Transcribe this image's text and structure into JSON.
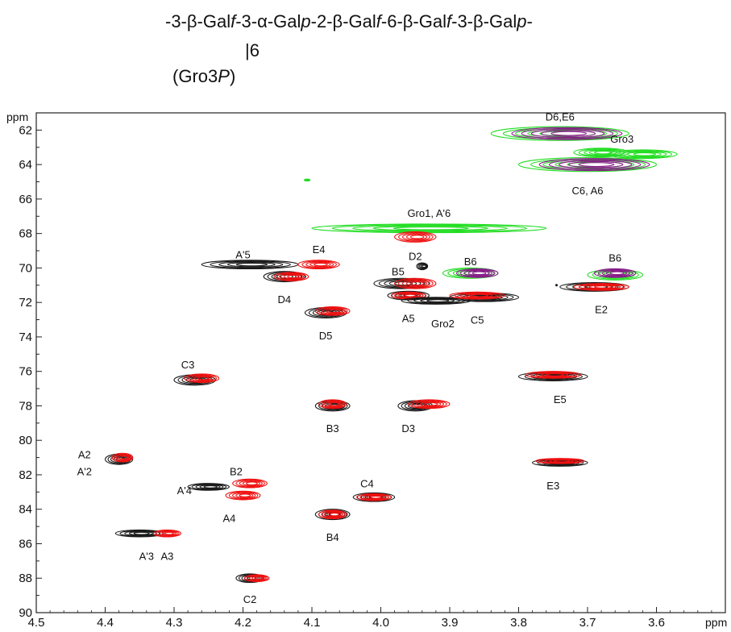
{
  "chart_data": {
    "type": "scatter",
    "title": "-3-β-Galf-3-α-Galp-2-β-Galf-6-β-Galf-3-β-Galp-",
    "title_line2": "|6",
    "title_line3": "(Gro3P)",
    "xlabel": "ppm",
    "ylabel": "ppm",
    "xlim": [
      4.5,
      3.5
    ],
    "ylim": [
      61,
      90
    ],
    "x_reversed": true,
    "y_reversed": true,
    "x_ticks": [
      4.5,
      4.4,
      4.3,
      4.2,
      4.1,
      4.0,
      3.9,
      3.8,
      3.7,
      3.6
    ],
    "y_ticks": [
      62,
      64,
      66,
      68,
      70,
      72,
      74,
      76,
      78,
      80,
      82,
      84,
      86,
      88,
      90
    ],
    "colors": {
      "black": "#1a1a1a",
      "red": "#ee1111",
      "green": "#22dd22",
      "purple": "#8a1a8a"
    },
    "peaks": [
      {
        "x": 3.74,
        "y": 62.2,
        "w": 0.1,
        "h": 0.8,
        "color": "green"
      },
      {
        "x": 3.73,
        "y": 62.2,
        "w": 0.08,
        "h": 0.7,
        "color": "purple"
      },
      {
        "x": 3.7,
        "y": 64.0,
        "w": 0.1,
        "h": 0.8,
        "color": "green"
      },
      {
        "x": 3.69,
        "y": 64.0,
        "w": 0.08,
        "h": 0.7,
        "color": "purple"
      },
      {
        "x": 3.68,
        "y": 63.3,
        "w": 0.04,
        "h": 0.5,
        "color": "green"
      },
      {
        "x": 3.62,
        "y": 63.4,
        "w": 0.05,
        "h": 0.5,
        "color": "green"
      },
      {
        "x": 3.93,
        "y": 67.7,
        "w": 0.17,
        "h": 0.5,
        "color": "green"
      },
      {
        "x": 3.66,
        "y": 70.4,
        "w": 0.04,
        "h": 0.6,
        "color": "green"
      },
      {
        "x": 3.66,
        "y": 70.3,
        "w": 0.03,
        "h": 0.5,
        "color": "purple"
      },
      {
        "x": 3.87,
        "y": 70.3,
        "w": 0.04,
        "h": 0.6,
        "color": "green"
      },
      {
        "x": 3.86,
        "y": 70.3,
        "w": 0.03,
        "h": 0.5,
        "color": "purple"
      },
      {
        "x": 4.107,
        "y": 64.9,
        "w": 0.004,
        "h": 0.1,
        "color": "green"
      },
      {
        "x": 3.95,
        "y": 68.2,
        "w": 0.03,
        "h": 0.6,
        "color": "red"
      },
      {
        "x": 3.94,
        "y": 69.9,
        "w": 0.008,
        "h": 0.4,
        "color": "black"
      },
      {
        "x": 4.19,
        "y": 69.8,
        "w": 0.07,
        "h": 0.5,
        "color": "black"
      },
      {
        "x": 4.09,
        "y": 69.8,
        "w": 0.03,
        "h": 0.5,
        "color": "red"
      },
      {
        "x": 4.14,
        "y": 70.5,
        "w": 0.03,
        "h": 0.6,
        "color": "black"
      },
      {
        "x": 4.13,
        "y": 70.5,
        "w": 0.025,
        "h": 0.5,
        "color": "red"
      },
      {
        "x": 3.97,
        "y": 70.9,
        "w": 0.04,
        "h": 0.6,
        "color": "black"
      },
      {
        "x": 3.95,
        "y": 70.9,
        "w": 0.03,
        "h": 0.6,
        "color": "red"
      },
      {
        "x": 3.96,
        "y": 71.6,
        "w": 0.03,
        "h": 0.5,
        "color": "black"
      },
      {
        "x": 3.96,
        "y": 71.6,
        "w": 0.025,
        "h": 0.4,
        "color": "red"
      },
      {
        "x": 3.92,
        "y": 71.9,
        "w": 0.05,
        "h": 0.4,
        "color": "black"
      },
      {
        "x": 3.85,
        "y": 71.7,
        "w": 0.05,
        "h": 0.5,
        "color": "black"
      },
      {
        "x": 3.86,
        "y": 71.6,
        "w": 0.04,
        "h": 0.4,
        "color": "red"
      },
      {
        "x": 3.69,
        "y": 71.1,
        "w": 0.05,
        "h": 0.5,
        "color": "black"
      },
      {
        "x": 3.68,
        "y": 71.1,
        "w": 0.04,
        "h": 0.4,
        "color": "red"
      },
      {
        "x": 4.08,
        "y": 72.6,
        "w": 0.03,
        "h": 0.6,
        "color": "black"
      },
      {
        "x": 4.07,
        "y": 72.5,
        "w": 0.025,
        "h": 0.5,
        "color": "red"
      },
      {
        "x": 4.27,
        "y": 76.5,
        "w": 0.03,
        "h": 0.6,
        "color": "black"
      },
      {
        "x": 4.26,
        "y": 76.4,
        "w": 0.025,
        "h": 0.5,
        "color": "red"
      },
      {
        "x": 3.75,
        "y": 76.3,
        "w": 0.05,
        "h": 0.5,
        "color": "black"
      },
      {
        "x": 3.75,
        "y": 76.2,
        "w": 0.04,
        "h": 0.4,
        "color": "red"
      },
      {
        "x": 4.07,
        "y": 78.0,
        "w": 0.025,
        "h": 0.6,
        "color": "black"
      },
      {
        "x": 4.07,
        "y": 77.9,
        "w": 0.02,
        "h": 0.5,
        "color": "red"
      },
      {
        "x": 3.95,
        "y": 78.0,
        "w": 0.025,
        "h": 0.6,
        "color": "black"
      },
      {
        "x": 3.93,
        "y": 77.9,
        "w": 0.03,
        "h": 0.5,
        "color": "red"
      },
      {
        "x": 4.38,
        "y": 81.1,
        "w": 0.02,
        "h": 0.6,
        "color": "black"
      },
      {
        "x": 4.375,
        "y": 81.0,
        "w": 0.015,
        "h": 0.5,
        "color": "red"
      },
      {
        "x": 3.74,
        "y": 81.3,
        "w": 0.04,
        "h": 0.4,
        "color": "black"
      },
      {
        "x": 3.74,
        "y": 81.2,
        "w": 0.035,
        "h": 0.3,
        "color": "red"
      },
      {
        "x": 4.25,
        "y": 82.7,
        "w": 0.03,
        "h": 0.4,
        "color": "black"
      },
      {
        "x": 4.19,
        "y": 82.5,
        "w": 0.025,
        "h": 0.5,
        "color": "red"
      },
      {
        "x": 4.2,
        "y": 83.2,
        "w": 0.025,
        "h": 0.5,
        "color": "red"
      },
      {
        "x": 4.01,
        "y": 83.3,
        "w": 0.03,
        "h": 0.5,
        "color": "black"
      },
      {
        "x": 4.01,
        "y": 83.3,
        "w": 0.025,
        "h": 0.4,
        "color": "red"
      },
      {
        "x": 4.07,
        "y": 84.3,
        "w": 0.025,
        "h": 0.6,
        "color": "black"
      },
      {
        "x": 4.07,
        "y": 84.3,
        "w": 0.02,
        "h": 0.5,
        "color": "red"
      },
      {
        "x": 4.35,
        "y": 85.4,
        "w": 0.035,
        "h": 0.4,
        "color": "black"
      },
      {
        "x": 4.31,
        "y": 85.4,
        "w": 0.02,
        "h": 0.4,
        "color": "red"
      },
      {
        "x": 4.19,
        "y": 88.0,
        "w": 0.02,
        "h": 0.5,
        "color": "black"
      },
      {
        "x": 4.18,
        "y": 88.0,
        "w": 0.018,
        "h": 0.4,
        "color": "red"
      }
    ],
    "labels": [
      {
        "text": "D6,E6",
        "x": 3.74,
        "y": 61.2
      },
      {
        "text": "Gro3",
        "x": 3.65,
        "y": 62.5
      },
      {
        "text": "C6, A6",
        "x": 3.7,
        "y": 65.5
      },
      {
        "text": "Gro1, A'6",
        "x": 3.93,
        "y": 66.8
      },
      {
        "text": "D2",
        "x": 3.95,
        "y": 69.3
      },
      {
        "text": "B6",
        "x": 3.87,
        "y": 69.6
      },
      {
        "text": "B6",
        "x": 3.66,
        "y": 69.4
      },
      {
        "text": "A'5",
        "x": 4.2,
        "y": 69.2
      },
      {
        "text": "E4",
        "x": 4.09,
        "y": 68.9
      },
      {
        "text": "D4",
        "x": 4.14,
        "y": 71.8
      },
      {
        "text": "B5",
        "x": 3.975,
        "y": 70.2
      },
      {
        "text": "A5",
        "x": 3.96,
        "y": 72.9
      },
      {
        "text": "Gro2",
        "x": 3.91,
        "y": 73.2
      },
      {
        "text": "C5",
        "x": 3.86,
        "y": 73.0
      },
      {
        "text": "E2",
        "x": 3.68,
        "y": 72.4
      },
      {
        "text": "D5",
        "x": 4.08,
        "y": 73.9
      },
      {
        "text": "C3",
        "x": 4.28,
        "y": 75.6
      },
      {
        "text": "E5",
        "x": 3.74,
        "y": 77.6
      },
      {
        "text": "B3",
        "x": 4.07,
        "y": 79.3
      },
      {
        "text": "D3",
        "x": 3.96,
        "y": 79.3
      },
      {
        "text": "A2",
        "x": 4.43,
        "y": 80.8
      },
      {
        "text": "A'2",
        "x": 4.43,
        "y": 81.8
      },
      {
        "text": "B2",
        "x": 4.21,
        "y": 81.8
      },
      {
        "text": "A'4",
        "x": 4.285,
        "y": 82.9
      },
      {
        "text": "E3",
        "x": 3.75,
        "y": 82.6
      },
      {
        "text": "C4",
        "x": 4.02,
        "y": 82.5
      },
      {
        "text": "A4",
        "x": 4.22,
        "y": 84.5
      },
      {
        "text": "B4",
        "x": 4.07,
        "y": 85.6
      },
      {
        "text": "A'3",
        "x": 4.34,
        "y": 86.7
      },
      {
        "text": "A3",
        "x": 4.31,
        "y": 86.7
      },
      {
        "text": "C2",
        "x": 4.19,
        "y": 89.2
      }
    ],
    "dots": [
      {
        "x": 3.745,
        "y": 71.0
      }
    ]
  }
}
